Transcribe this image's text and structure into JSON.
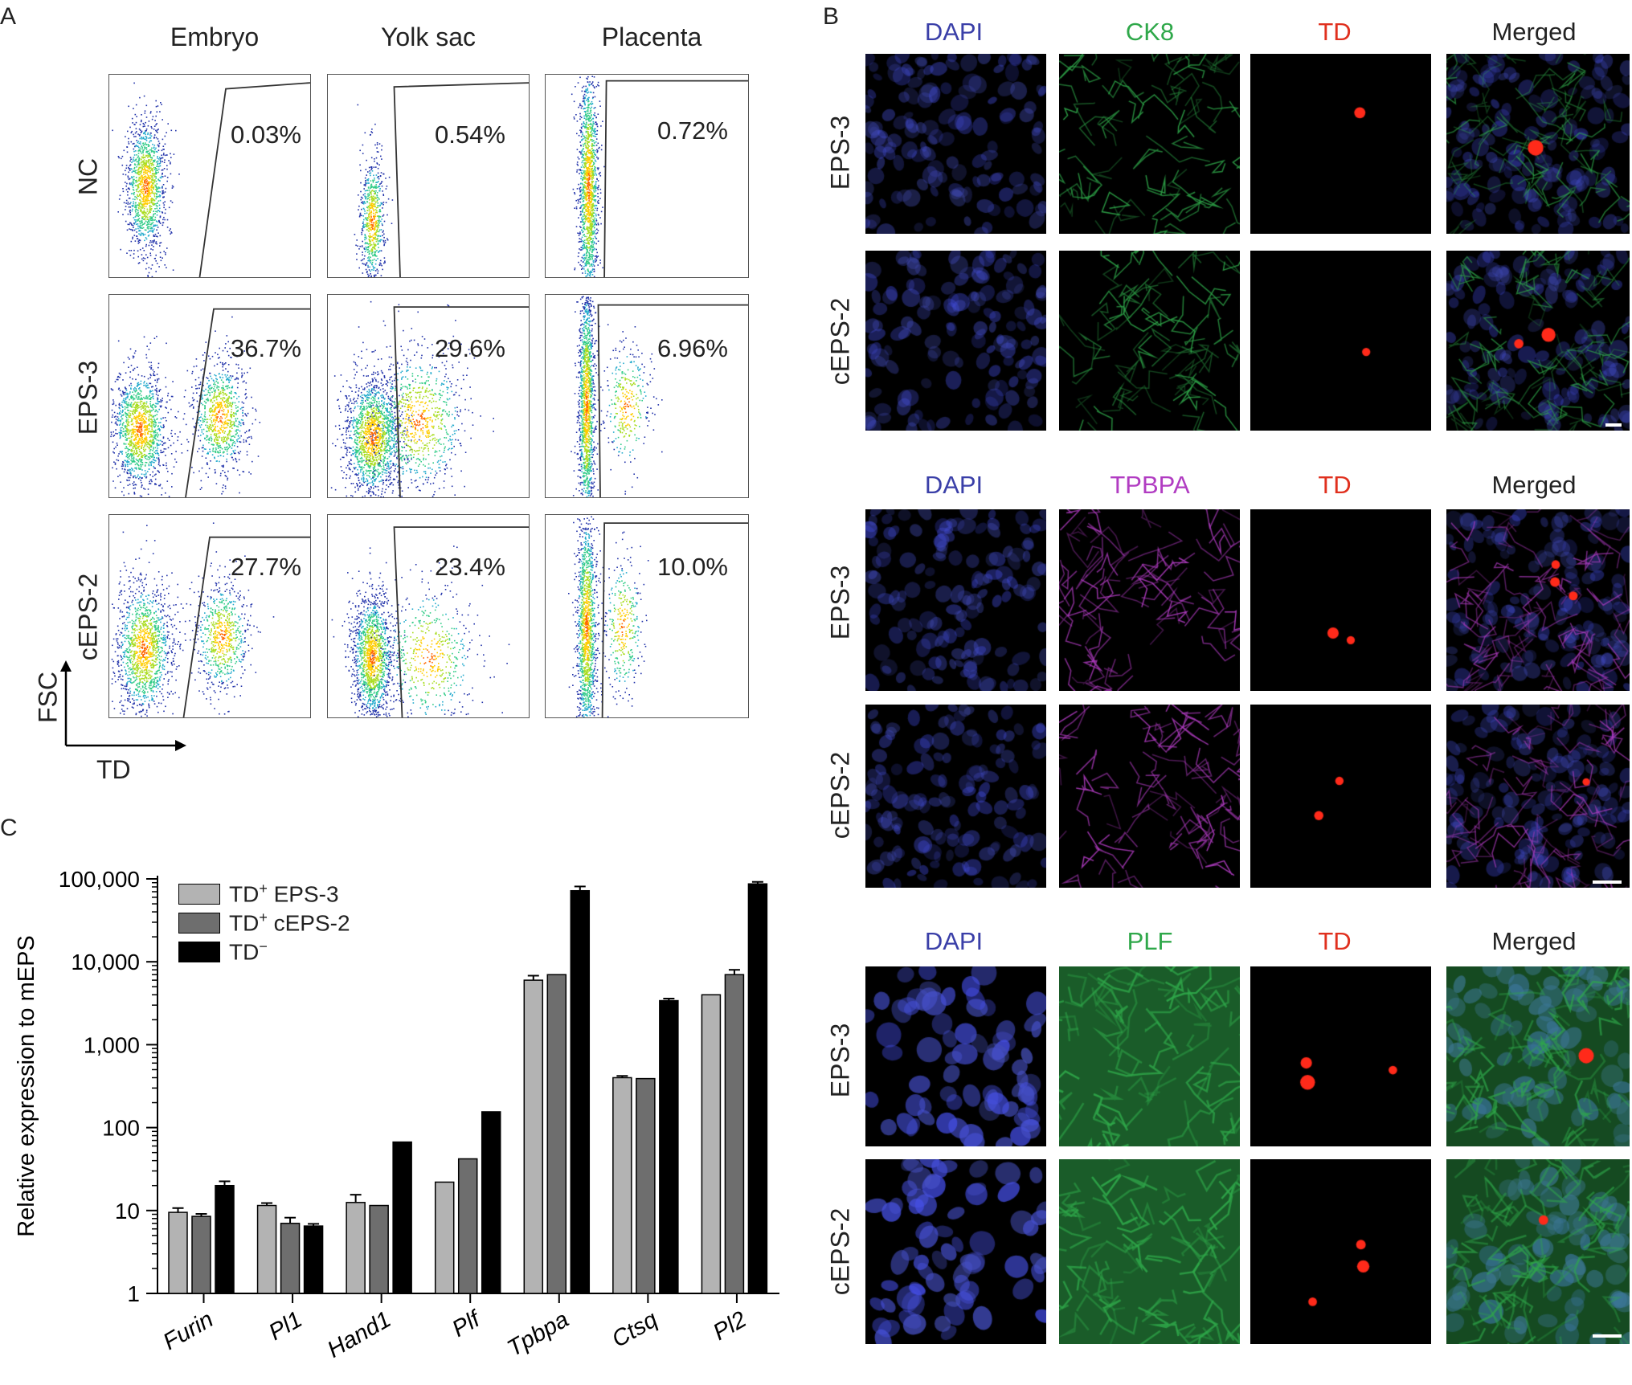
{
  "panel_a": {
    "letter": "A",
    "columns": [
      "Embryo",
      "Yolk sac",
      "Placenta"
    ],
    "rows": [
      {
        "label": "NC",
        "percents": [
          "0.03%",
          "0.54%",
          "0.72%"
        ]
      },
      {
        "label": "EPS-3",
        "percents": [
          "36.7%",
          "29.6%",
          "6.96%"
        ]
      },
      {
        "label": "cEPS-2",
        "percents": [
          "27.7%",
          "23.4%",
          "10.0%"
        ]
      }
    ],
    "axis_y": "FSC",
    "axis_x": "TD"
  },
  "panel_b": {
    "letter": "B",
    "groups": [
      {
        "channels": [
          "DAPI",
          "CK8",
          "TD",
          "Merged"
        ],
        "marker_color": "#2fa84a",
        "rows": [
          "EPS-3",
          "cEPS-2"
        ]
      },
      {
        "channels": [
          "DAPI",
          "TPBPA",
          "TD",
          "Merged"
        ],
        "marker_color": "#b13cc2",
        "rows": [
          "EPS-3",
          "cEPS-2"
        ]
      },
      {
        "channels": [
          "DAPI",
          "PLF",
          "TD",
          "Merged"
        ],
        "marker_color": "#2fa84a",
        "rows": [
          "EPS-3",
          "cEPS-2"
        ]
      }
    ],
    "dapi_color": "#3a3fa8",
    "td_color": "#e0301e",
    "merged_color": "#222222"
  },
  "panel_c": {
    "letter": "C",
    "legend": [
      {
        "marker": "TD",
        "sup": "+",
        "rest": " EPS-3",
        "color": "#b3b3b3"
      },
      {
        "marker": "TD",
        "sup": "+",
        "rest": " cEPS-2",
        "color": "#6e6e6e"
      },
      {
        "marker": "TD",
        "sup": "−",
        "rest": "",
        "color": "#000000"
      }
    ]
  },
  "chart_data": {
    "type": "bar",
    "ylabel": "Relative expression to mEPS",
    "yscale": "log",
    "ylim": [
      1,
      100000
    ],
    "yticks": [
      "1",
      "10",
      "100",
      "1,000",
      "10,000",
      "100,000"
    ],
    "categories": [
      "Furin",
      "Pl1",
      "Hand1",
      "Plf",
      "Tpbpa",
      "Ctsq",
      "Pl2"
    ],
    "series": [
      {
        "name": "TD+ EPS-3",
        "color": "#b3b3b3",
        "values": [
          9.5,
          11.5,
          12.5,
          22,
          6000,
          400,
          4000
        ],
        "errors": [
          1.2,
          0.8,
          3,
          0,
          800,
          20,
          0
        ]
      },
      {
        "name": "TD+ cEPS-2",
        "color": "#6e6e6e",
        "values": [
          8.5,
          7,
          11.5,
          42,
          7000,
          390,
          7000
        ],
        "errors": [
          0.6,
          1.2,
          0,
          0,
          0,
          0,
          1000
        ]
      },
      {
        "name": "TD−",
        "color": "#000000",
        "values": [
          20,
          6.5,
          67,
          155,
          72000,
          3400,
          87000
        ],
        "errors": [
          2.5,
          0.4,
          0,
          0,
          9000,
          200,
          5000
        ]
      }
    ]
  }
}
